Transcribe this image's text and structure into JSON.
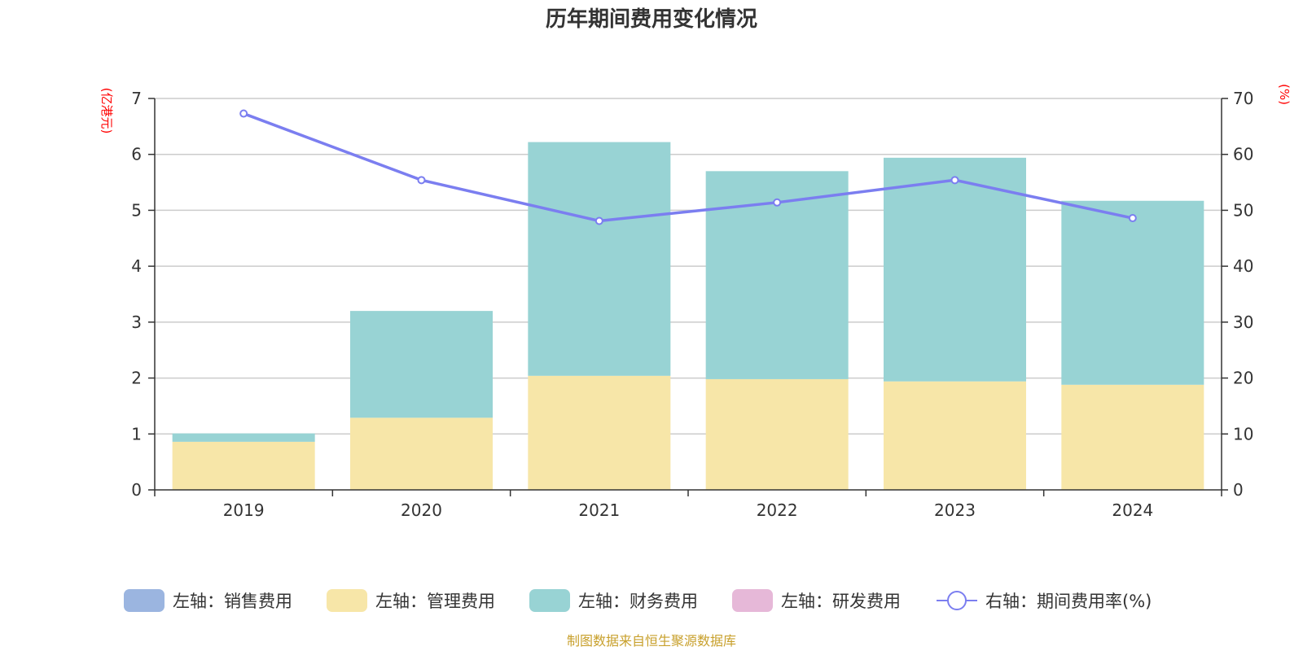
{
  "chart_data": {
    "type": "bar",
    "title": "历年期间费用变化情况",
    "categories": [
      "2019",
      "2020",
      "2021",
      "2022",
      "2023",
      "2024"
    ],
    "left_axis": {
      "unit": "(亿港元)",
      "ylim": [
        0,
        7
      ],
      "ticks": [
        "0",
        "1",
        "2",
        "3",
        "4",
        "5",
        "6",
        "7"
      ]
    },
    "right_axis": {
      "unit": "(%)",
      "ylim": [
        0,
        70
      ],
      "ticks": [
        "0",
        "10",
        "20",
        "30",
        "40",
        "50",
        "60",
        "70"
      ]
    },
    "stacked": true,
    "series": [
      {
        "name": "左轴：销售费用",
        "axis": "left",
        "type": "bar",
        "color": "#9bb5e0",
        "values": [
          0,
          0,
          0,
          0,
          0,
          0
        ]
      },
      {
        "name": "左轴：管理费用",
        "axis": "left",
        "type": "bar",
        "color": "#f7e6a8",
        "values": [
          0.86,
          1.29,
          2.04,
          1.98,
          1.94,
          1.88
        ]
      },
      {
        "name": "左轴：财务费用",
        "axis": "left",
        "type": "bar",
        "color": "#98d3d4",
        "values": [
          0.15,
          1.91,
          4.18,
          3.72,
          4.0,
          3.29
        ]
      },
      {
        "name": "左轴：研发费用",
        "axis": "left",
        "type": "bar",
        "color": "#e6b8d8",
        "values": [
          0,
          0,
          0,
          0,
          0,
          0
        ]
      },
      {
        "name": "右轴：期间费用率(%)",
        "axis": "right",
        "type": "line",
        "color": "#7b7ef0",
        "values": [
          67.3,
          55.4,
          48.1,
          51.4,
          55.4,
          48.6
        ]
      }
    ],
    "grid": true,
    "legend_position": "bottom"
  },
  "source": "制图数据来自恒生聚源数据库"
}
